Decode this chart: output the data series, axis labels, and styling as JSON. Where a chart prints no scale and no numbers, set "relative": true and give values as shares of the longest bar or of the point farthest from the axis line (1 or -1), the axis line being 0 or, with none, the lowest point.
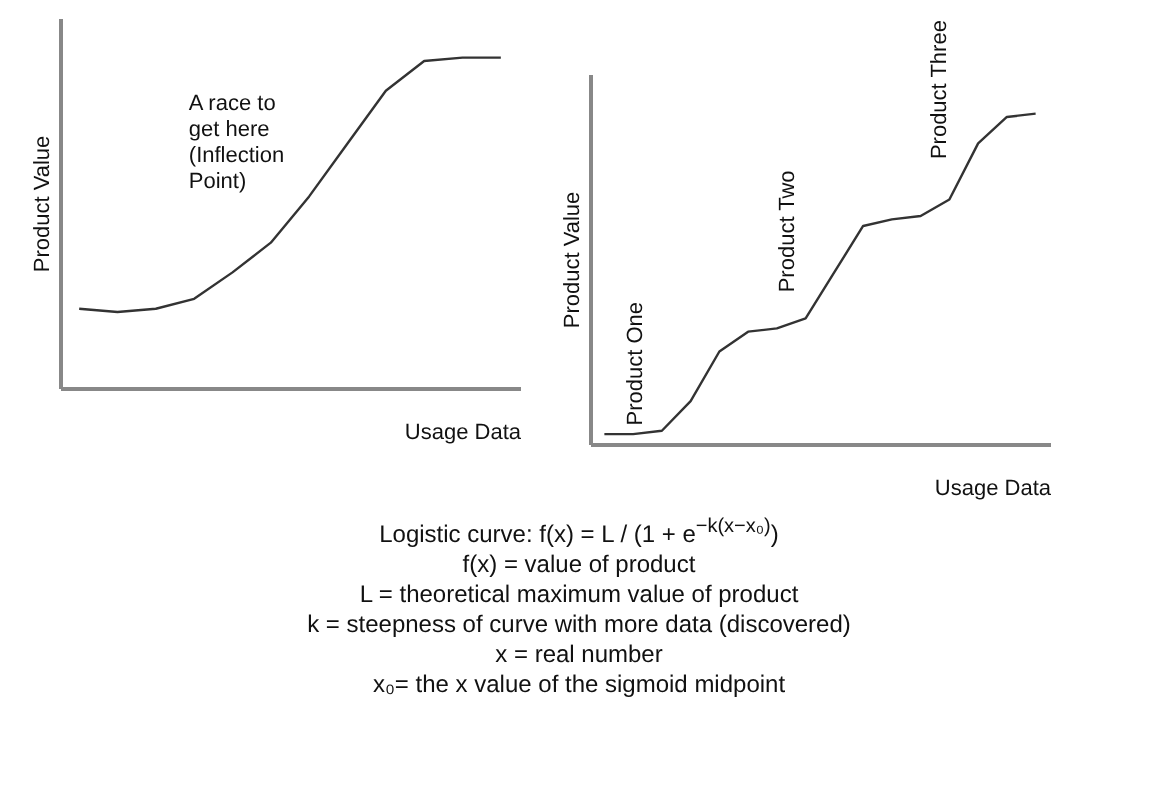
{
  "chart_data": [
    {
      "type": "line",
      "relative": true,
      "xlabel": "Usage Data",
      "ylabel": "Product Value",
      "categories": [
        null,
        null,
        null,
        null,
        null,
        null,
        null,
        null,
        null,
        null,
        null,
        null
      ],
      "series": [
        {
          "color": "#333333",
          "values": [
            0.24,
            0.23,
            0.24,
            0.27,
            0.35,
            0.44,
            0.58,
            0.74,
            0.9,
            0.99,
            1,
            1
          ]
        }
      ],
      "annotations": [
        "A race to get here (Inflection Point)"
      ],
      "grid": false,
      "legend": false,
      "marker": "none",
      "line_style": "solid"
    },
    {
      "type": "line",
      "relative": true,
      "xlabel": "Usage Data",
      "ylabel": "Product Value",
      "categories": [
        null,
        null,
        null,
        null,
        null,
        null,
        null,
        null,
        null,
        null,
        null,
        null,
        null,
        null,
        null,
        null
      ],
      "series": [
        {
          "color": "#333333",
          "values": [
            0.03,
            0.03,
            0.04,
            0.13,
            0.28,
            0.34,
            0.35,
            0.38,
            0.52,
            0.66,
            0.68,
            0.69,
            0.74,
            0.91,
            0.99,
            1
          ]
        }
      ],
      "annotations": [
        "Product One",
        "Product Two",
        "Product Three"
      ],
      "grid": false,
      "legend": false,
      "marker": "none",
      "line_style": "solid"
    },
    {
      "type": "other",
      "annotations": [
        "Logistic curve: f(x) = L / (1 + e$^{−k(x−x₀)}$)",
        "f(x) = value of product",
        "L = theoretical maximum value of product",
        "k  = steepness of curve with more data (discovered)",
        "x = real number",
        "x₀= the x value of the sigmoid midpoint"
      ]
    }
  ]
}
